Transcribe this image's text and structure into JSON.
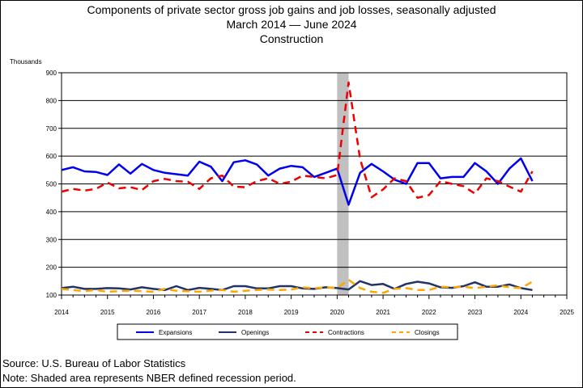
{
  "header": {
    "title_line1": "Components of private sector gross job gains and job losses, seasonally adjusted",
    "title_line2": "March 2014  — June 2024",
    "title_line3": "Construction"
  },
  "footer": {
    "source": "Source: U.S. Bureau of Labor Statistics",
    "note": "Note: Shaded area represents NBER defined recession period."
  },
  "chart_data": {
    "type": "line",
    "ylabel": "Thousands",
    "xlabel": "",
    "xlim": [
      2014,
      2025
    ],
    "ylim": [
      100,
      900
    ],
    "x_ticks": [
      "2014",
      "2015",
      "2016",
      "2017",
      "2018",
      "2019",
      "2020",
      "2021",
      "2022",
      "2023",
      "2024",
      "2025"
    ],
    "y_ticks": [
      "100",
      "200",
      "300",
      "400",
      "500",
      "600",
      "700",
      "800",
      "900"
    ],
    "grid": "horizontal",
    "legend_position": "bottom",
    "recession": {
      "start": 2020.0,
      "end": 2020.25,
      "color": "#c0c0c0"
    },
    "x": [
      2014.0,
      2014.25,
      2014.5,
      2014.75,
      2015.0,
      2015.25,
      2015.5,
      2015.75,
      2016.0,
      2016.25,
      2016.5,
      2016.75,
      2017.0,
      2017.25,
      2017.5,
      2017.75,
      2018.0,
      2018.25,
      2018.5,
      2018.75,
      2019.0,
      2019.25,
      2019.5,
      2019.75,
      2020.0,
      2020.25,
      2020.5,
      2020.75,
      2021.0,
      2021.25,
      2021.5,
      2021.75,
      2022.0,
      2022.25,
      2022.5,
      2022.75,
      2023.0,
      2023.25,
      2023.5,
      2023.75,
      2024.0,
      2024.25
    ],
    "series": [
      {
        "name": "Expansions",
        "color": "#0000ee",
        "style": "solid",
        "width": 2.5,
        "values": [
          550,
          560,
          545,
          543,
          532,
          570,
          537,
          572,
          550,
          540,
          535,
          530,
          580,
          562,
          510,
          578,
          585,
          570,
          530,
          555,
          565,
          560,
          525,
          540,
          555,
          425,
          540,
          572,
          545,
          515,
          500,
          575,
          575,
          520,
          525,
          525,
          575,
          545,
          500,
          555,
          592,
          510
        ]
      },
      {
        "name": "Openings",
        "color": "#223366",
        "style": "solid",
        "width": 2.5,
        "values": [
          125,
          130,
          122,
          122,
          125,
          124,
          120,
          128,
          122,
          118,
          132,
          118,
          126,
          122,
          118,
          132,
          132,
          124,
          124,
          132,
          132,
          124,
          122,
          128,
          125,
          120,
          150,
          136,
          140,
          122,
          140,
          148,
          142,
          128,
          126,
          132,
          146,
          130,
          130,
          138,
          125,
          118
        ]
      },
      {
        "name": "Contractions",
        "color": "#ee0000",
        "style": "dashed",
        "width": 2.5,
        "values": [
          472,
          482,
          476,
          482,
          505,
          484,
          488,
          478,
          510,
          518,
          510,
          508,
          482,
          520,
          530,
          490,
          488,
          510,
          520,
          500,
          508,
          530,
          525,
          520,
          532,
          865,
          590,
          452,
          480,
          520,
          510,
          450,
          460,
          510,
          500,
          492,
          465,
          520,
          510,
          490,
          472,
          545
        ]
      },
      {
        "name": "Closings",
        "color": "#ffa500",
        "style": "dashed",
        "width": 2.5,
        "values": [
          122,
          118,
          114,
          118,
          112,
          114,
          116,
          114,
          112,
          122,
          115,
          114,
          112,
          116,
          118,
          112,
          115,
          118,
          120,
          118,
          120,
          128,
          124,
          128,
          125,
          155,
          125,
          112,
          108,
          122,
          125,
          118,
          118,
          130,
          128,
          130,
          125,
          130,
          135,
          128,
          125,
          148
        ]
      }
    ]
  }
}
